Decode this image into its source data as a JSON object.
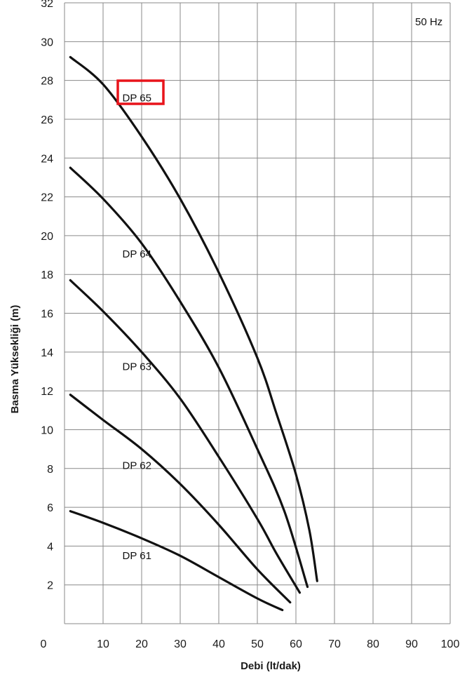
{
  "chart_data": {
    "type": "line",
    "xlabel": "Debi (lt/dak)",
    "ylabel": "Basma Yüksekliği (m)",
    "frequency_label": "50 Hz",
    "xlim": [
      0,
      100
    ],
    "ylim": [
      0,
      32
    ],
    "x_ticks": [
      0,
      10,
      20,
      30,
      40,
      50,
      60,
      70,
      80,
      90,
      100
    ],
    "y_ticks": [
      2,
      4,
      6,
      8,
      10,
      12,
      14,
      16,
      18,
      20,
      22,
      24,
      26,
      28,
      30,
      32
    ],
    "grid": true,
    "highlight_color": "#e8141b",
    "highlighted_series": "DP 65",
    "series": [
      {
        "name": "DP 61",
        "x": [
          1.5,
          10,
          20,
          30,
          40,
          50,
          56.5
        ],
        "y": [
          5.8,
          5.2,
          4.4,
          3.5,
          2.4,
          1.3,
          0.7
        ]
      },
      {
        "name": "DP 62",
        "x": [
          1.5,
          10,
          20,
          30,
          40,
          50,
          58.5
        ],
        "y": [
          11.8,
          10.5,
          9.0,
          7.2,
          5.1,
          2.8,
          1.1
        ]
      },
      {
        "name": "DP 63",
        "x": [
          1.5,
          10,
          20,
          30,
          40,
          50,
          55,
          61
        ],
        "y": [
          17.7,
          16.1,
          14.0,
          11.6,
          8.6,
          5.4,
          3.6,
          1.6
        ]
      },
      {
        "name": "DP 64",
        "x": [
          1.5,
          10,
          20,
          30,
          40,
          50,
          57,
          63
        ],
        "y": [
          23.5,
          21.9,
          19.6,
          16.6,
          13.2,
          9.0,
          5.8,
          1.9
        ]
      },
      {
        "name": "DP 65",
        "x": [
          1.5,
          10,
          20,
          30,
          40,
          50,
          55,
          60,
          63.5,
          65.5
        ],
        "y": [
          29.2,
          27.8,
          25.1,
          21.9,
          18.1,
          13.7,
          10.8,
          7.7,
          4.8,
          2.2
        ]
      }
    ]
  }
}
